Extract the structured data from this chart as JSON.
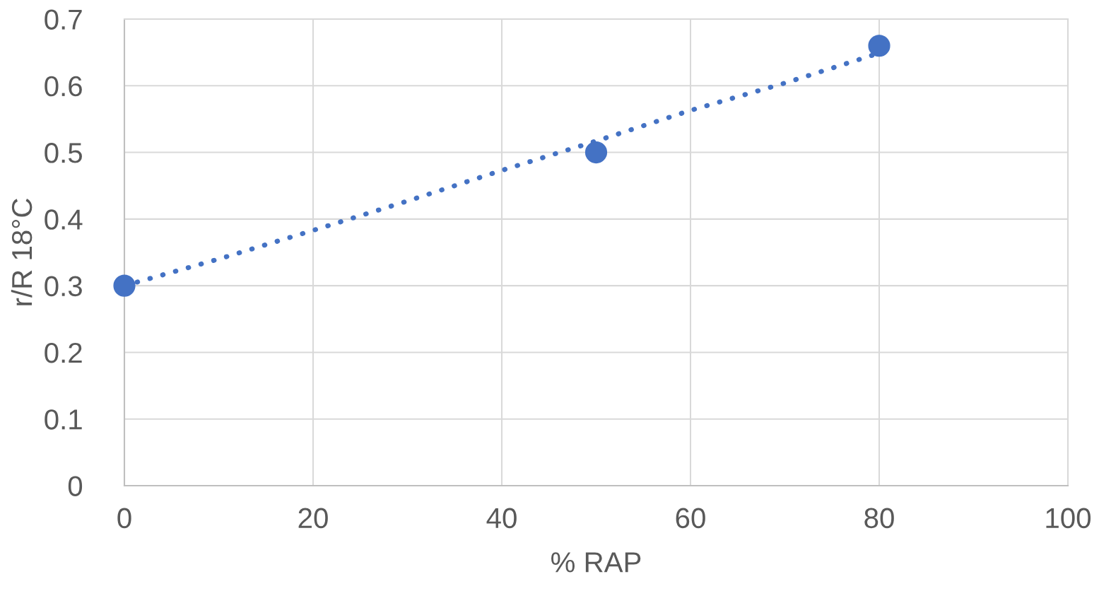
{
  "chart_data": {
    "type": "scatter",
    "xlabel": "% RAP",
    "ylabel": "r/R 18°C",
    "xlim": [
      0,
      100
    ],
    "xticks": [
      0,
      20,
      40,
      60,
      80,
      100
    ],
    "ylim": [
      0,
      0.7
    ],
    "yticks": [
      0,
      0.1,
      0.2,
      0.3,
      0.4,
      0.5,
      0.6,
      0.7
    ],
    "grid": true,
    "legend": false,
    "series": [
      {
        "color": "#4472c4",
        "marker": "circle",
        "x": [
          0,
          50,
          80
        ],
        "values": [
          0.3,
          0.5,
          0.66
        ]
      },
      {
        "type": "line",
        "color": "#4472c4",
        "line_style": "dotted",
        "marker": "none",
        "x": [
          0,
          10,
          20,
          30,
          40,
          50,
          60,
          70,
          80
        ],
        "values": [
          0.3,
          0.34,
          0.383,
          0.427,
          0.473,
          0.517,
          0.563,
          0.604,
          0.649
        ]
      }
    ]
  }
}
